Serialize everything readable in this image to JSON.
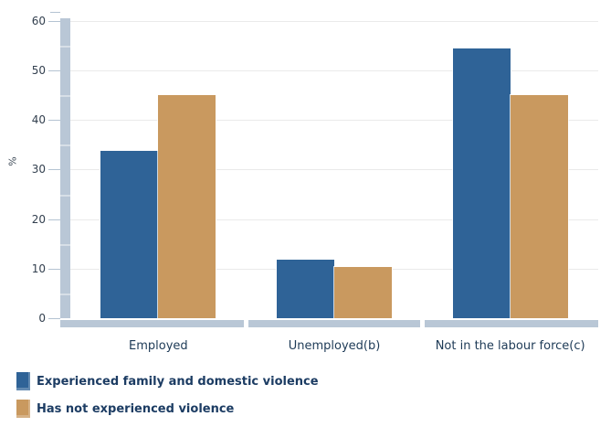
{
  "chart_data": {
    "type": "bar",
    "title": "",
    "categories": [
      "Employed",
      "Unemployed(b)",
      "Not in the labour force(c)"
    ],
    "series": [
      {
        "name": "Experienced family and domestic violence",
        "color": "#2F6397",
        "values": [
          33.7,
          11.9,
          54.4
        ]
      },
      {
        "name": "Has not experienced violence",
        "color": "#C9995F",
        "values": [
          45.0,
          10.4,
          45.0
        ]
      }
    ],
    "xlabel": "",
    "ylabel": "%",
    "ylim": [
      0,
      60
    ],
    "yticks": [
      0,
      10,
      20,
      30,
      40,
      50,
      60
    ],
    "grid": true,
    "legend_position": "bottom-left"
  },
  "colors": {
    "series_blue": "#2F6397",
    "series_tan": "#C9995F",
    "axis_band": "#B9C7D6",
    "band_separator": "#D7DFE7",
    "gridline": "#EAEAEA",
    "tick": "#B4C3D2",
    "text_navy": "#1D3A56"
  }
}
